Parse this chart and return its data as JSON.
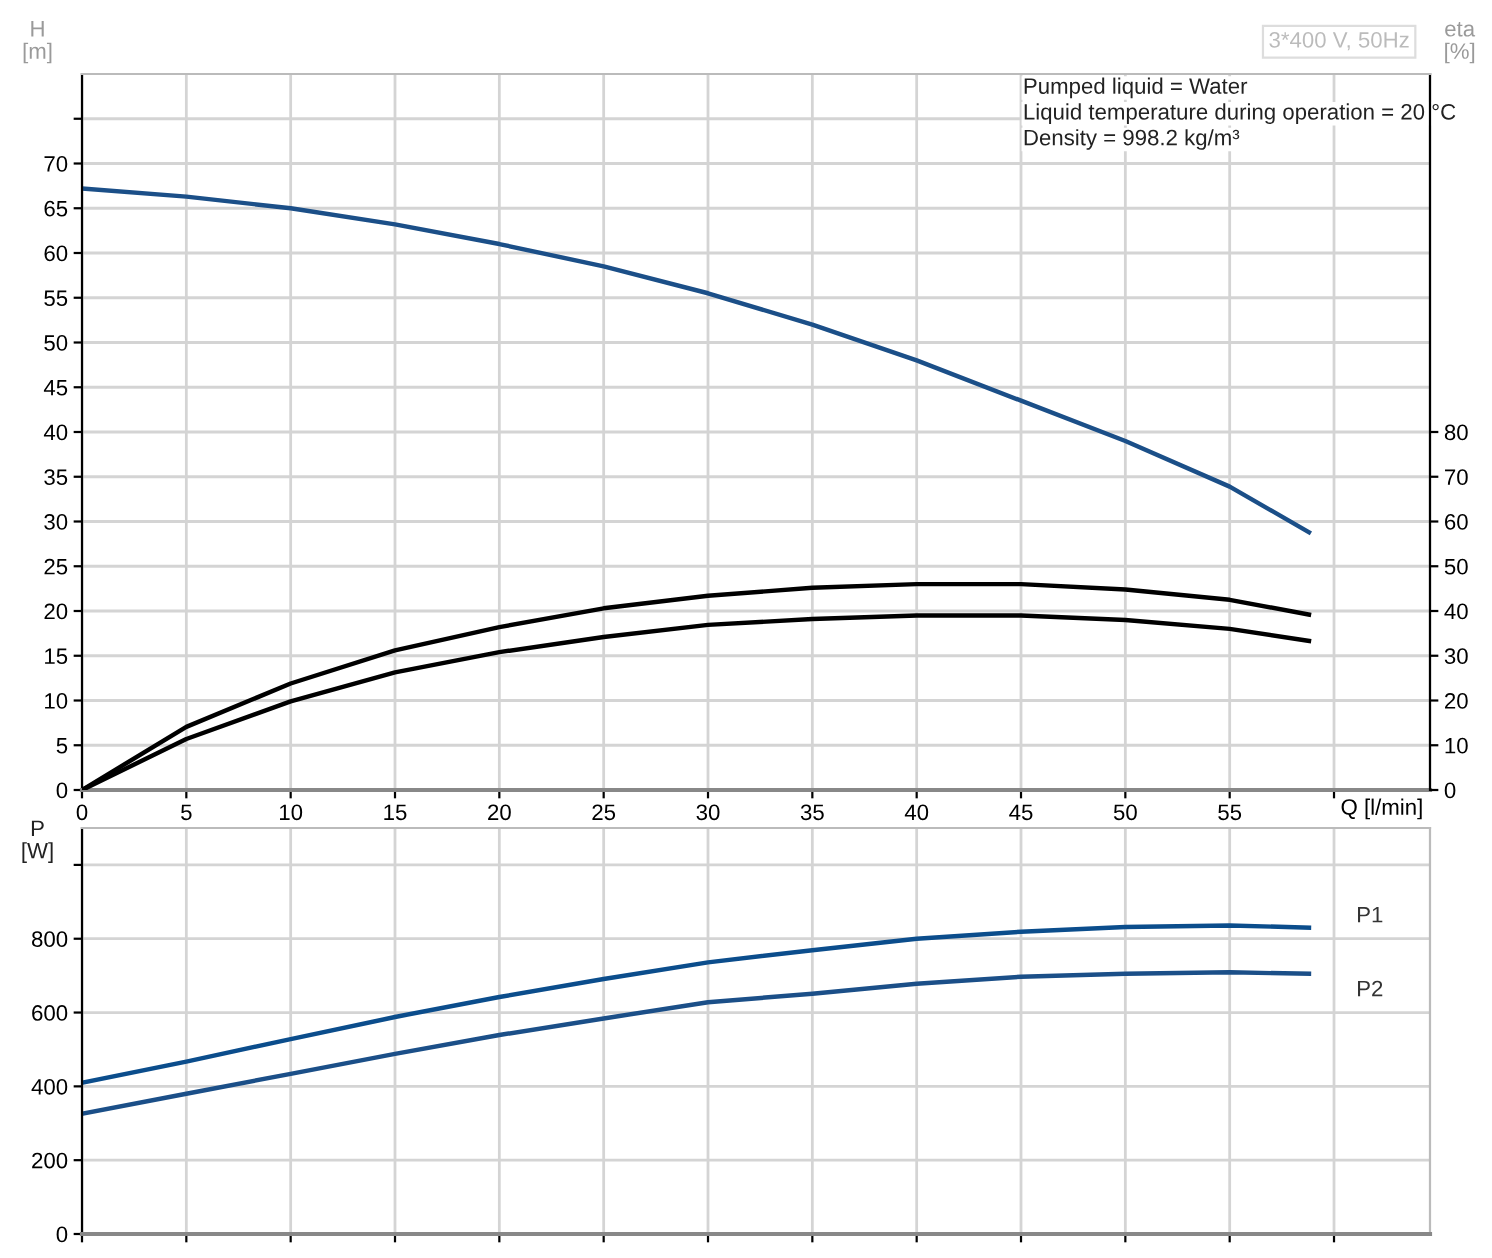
{
  "chart_data": [
    {
      "type": "line",
      "xlabel": "Q [l/min]",
      "ylabel": "H\n[m]",
      "y2label": "eta\n[%]",
      "annotations": [
        "3*400 V, 50Hz",
        "Pumped liquid = Water",
        "Liquid temperature during operation = 20 °C",
        "Density = 998.2 kg/m³"
      ],
      "xlim": [
        0,
        64.6
      ],
      "xticks": [
        0,
        5,
        10,
        15,
        20,
        25,
        30,
        35,
        40,
        45,
        50,
        55,
        {
          "value": 60,
          "label": null
        }
      ],
      "ylim": [
        0,
        80
      ],
      "yticks": [
        0,
        5,
        10,
        15,
        20,
        25,
        30,
        35,
        40,
        45,
        50,
        55,
        60,
        65,
        70,
        {
          "value": 75,
          "label": null
        }
      ],
      "y2lim": [
        0,
        160
      ],
      "y2ticks": [
        0,
        10,
        20,
        30,
        40,
        50,
        60,
        70,
        80
      ],
      "grid": true,
      "legend": false,
      "marker": "none",
      "line_style": "solid",
      "series": [
        {
          "color": "#1b4f88",
          "x": [
            0,
            5,
            10,
            15,
            20,
            25,
            30,
            35,
            40,
            45,
            50,
            55,
            58.8
          ],
          "values": [
            67.2,
            66.3,
            65.0,
            63.2,
            61.0,
            58.5,
            55.5,
            52.0,
            48.0,
            43.5,
            39.0,
            33.9,
            28.8
          ]
        },
        {
          "color": "#000000",
          "axis": "y2",
          "x": [
            0,
            5,
            10,
            15,
            20,
            25,
            30,
            35,
            40,
            45,
            50,
            55,
            58.8
          ],
          "values": [
            0,
            14.1,
            23.8,
            31.2,
            36.4,
            40.6,
            43.4,
            45.2,
            46,
            46,
            44.8,
            42.5,
            39.2
          ]
        },
        {
          "color": "#000000",
          "axis": "y2",
          "x": [
            0,
            5,
            10,
            15,
            20,
            25,
            30,
            35,
            40,
            45,
            50,
            55,
            58.8
          ],
          "values": [
            0,
            11.4,
            19.8,
            26.3,
            30.8,
            34.2,
            36.9,
            38.2,
            39,
            39,
            38,
            36,
            33.3
          ]
        }
      ]
    },
    {
      "type": "line",
      "ylabel": "P\n[W]",
      "tick_labels": "y",
      "xlim": [
        0,
        64.6
      ],
      "xticks": [
        0,
        5,
        10,
        15,
        20,
        25,
        30,
        35,
        40,
        45,
        50,
        55,
        60
      ],
      "ylim": [
        0,
        1100
      ],
      "yticks": [
        0,
        200,
        400,
        600,
        800,
        {
          "value": 1000,
          "label": null
        }
      ],
      "grid": true,
      "legend": false,
      "marker": "none",
      "line_style": "solid",
      "series": [
        {
          "name": "P1",
          "color": "#0b4d8c",
          "x": [
            0,
            5,
            10,
            15,
            20,
            25,
            30,
            35,
            40,
            45,
            50,
            55,
            58.8
          ],
          "values": [
            410,
            467,
            528,
            588,
            642,
            691,
            736,
            769,
            800,
            819,
            832,
            836,
            830
          ]
        },
        {
          "name": "P2",
          "color": "#1b4f88",
          "x": [
            0,
            5,
            10,
            15,
            20,
            25,
            30,
            35,
            40,
            45,
            50,
            55,
            58.8
          ],
          "values": [
            326,
            380,
            434,
            488,
            539,
            584,
            628,
            651,
            678,
            697,
            705,
            709,
            705
          ]
        }
      ]
    }
  ]
}
